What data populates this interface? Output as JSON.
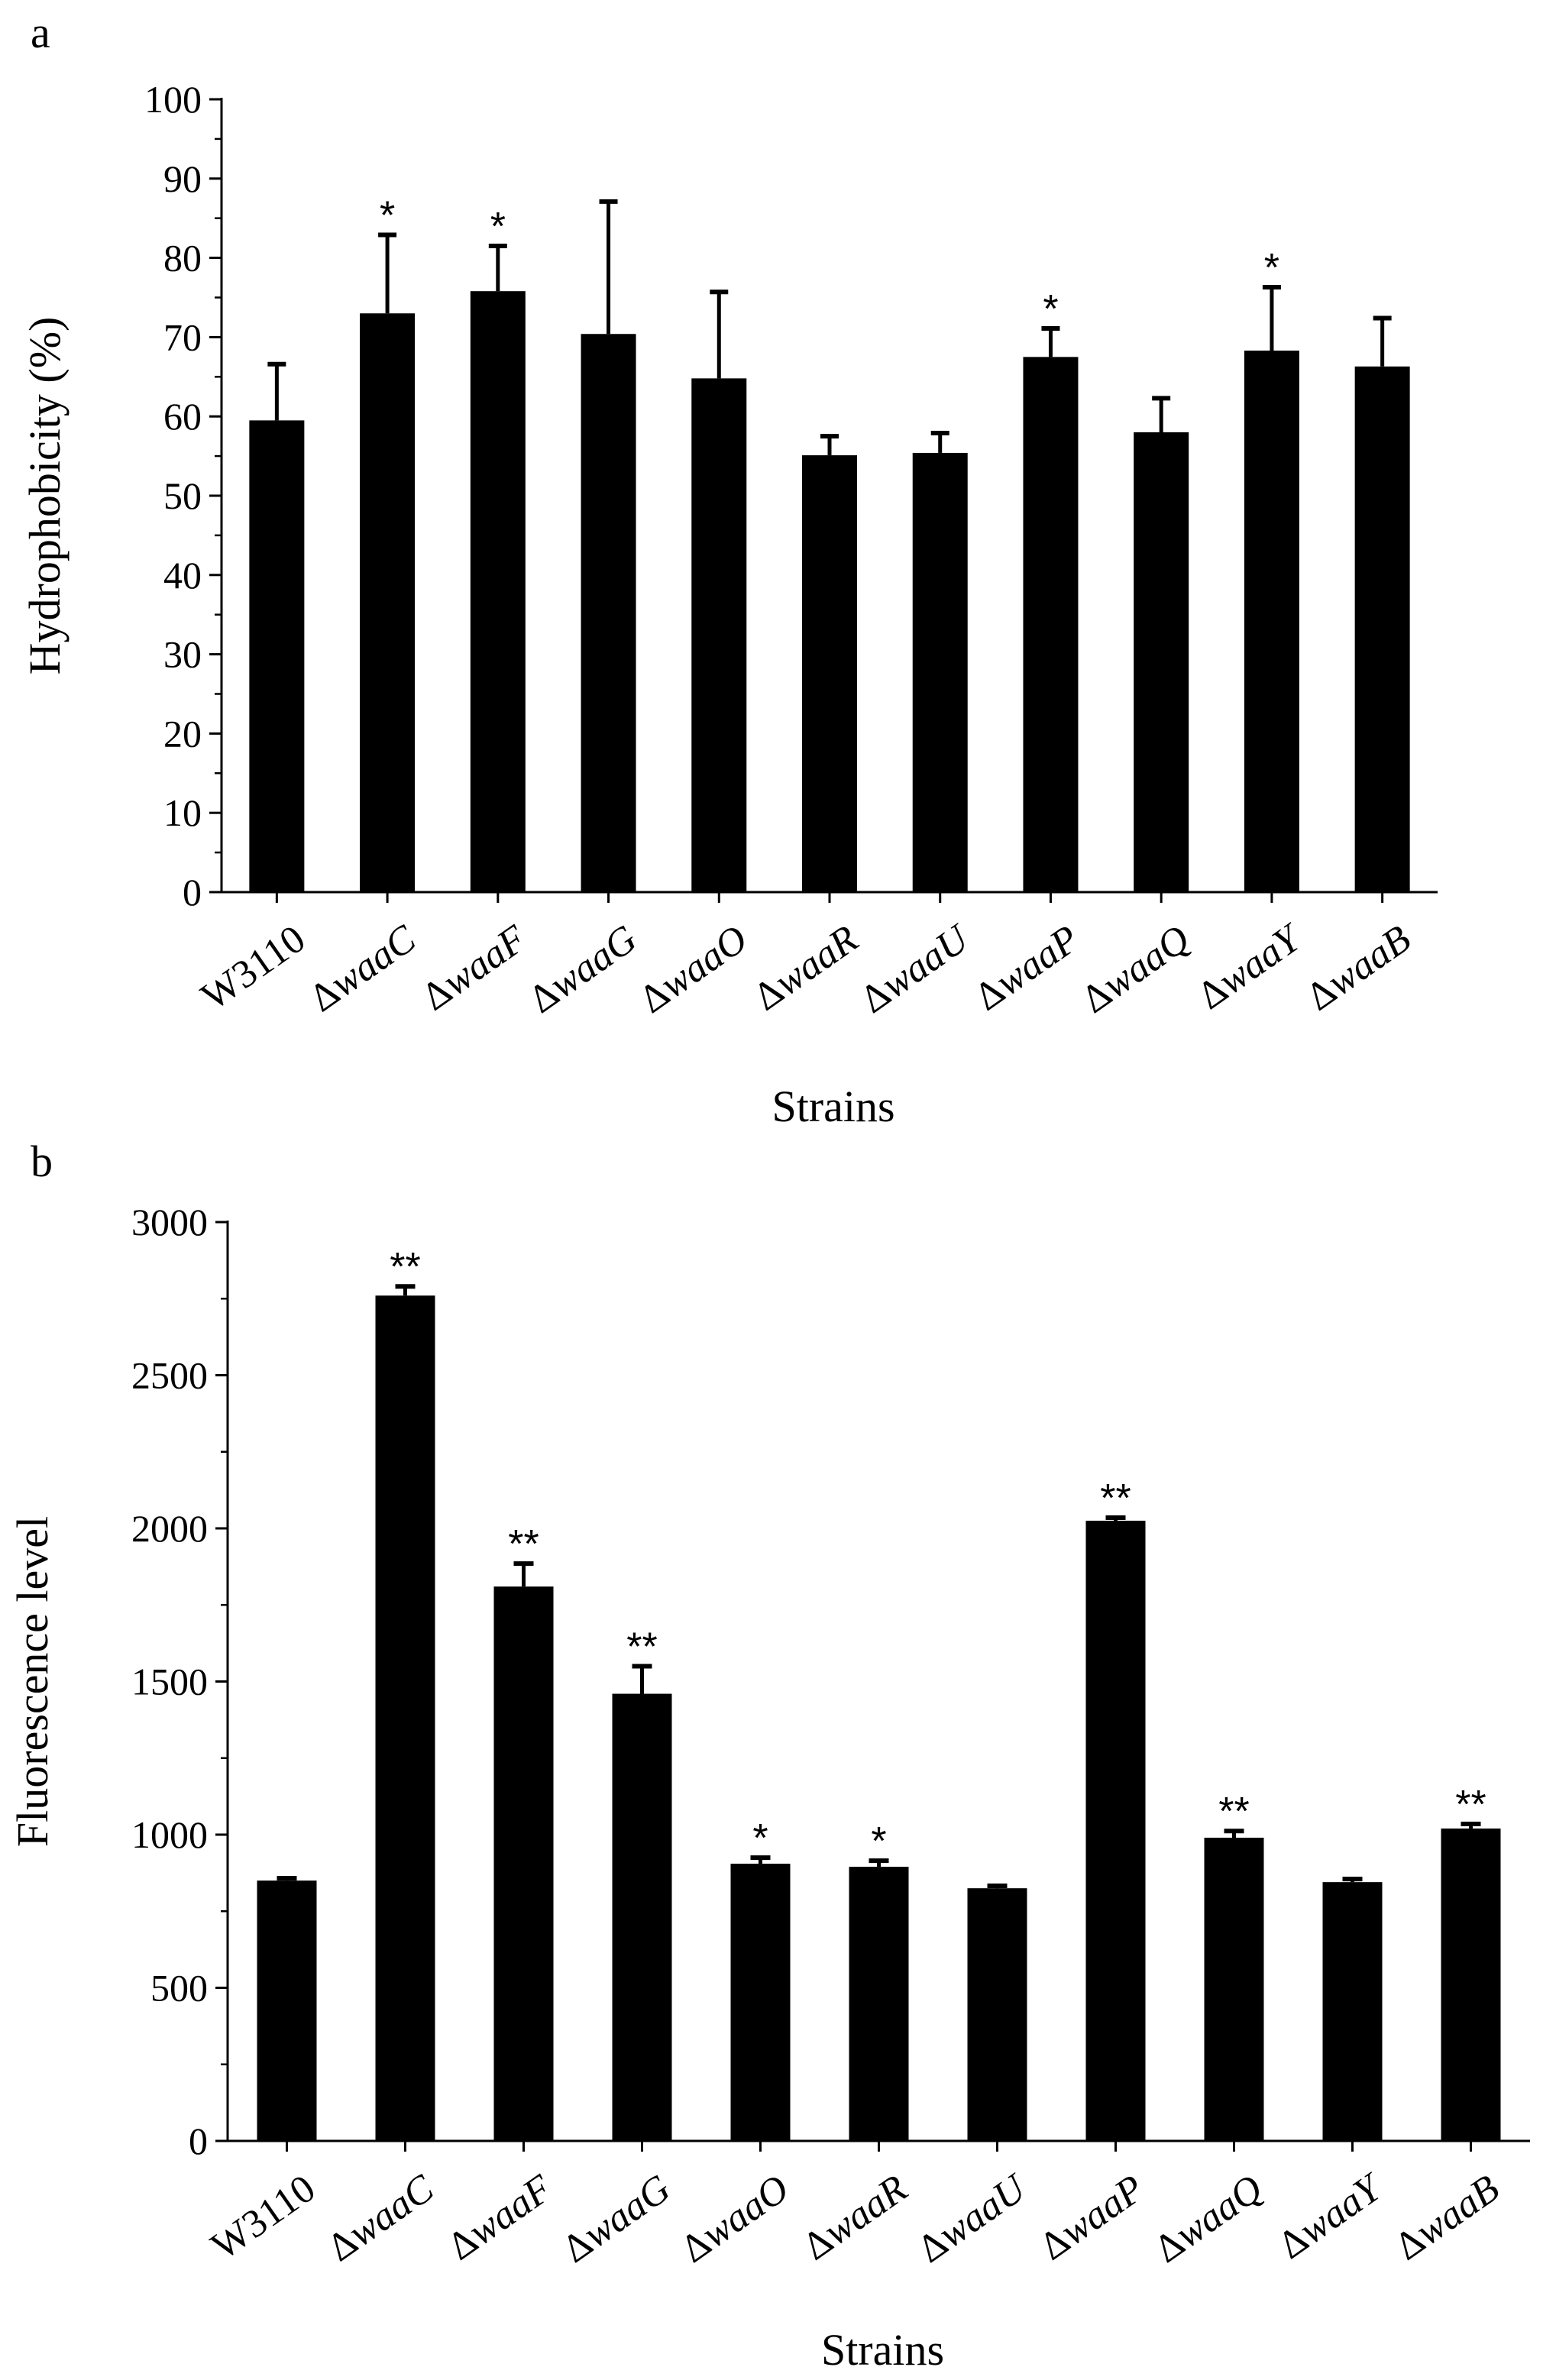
{
  "chart_data": [
    {
      "panel": "a",
      "type": "bar",
      "title": "",
      "xlabel": "Strains",
      "ylabel": "Hydrophobicity (%)",
      "ylim": [
        0,
        100
      ],
      "yticks": [
        0,
        10,
        20,
        30,
        40,
        50,
        60,
        70,
        80,
        90,
        100
      ],
      "ytick_labels": [
        "0",
        "10",
        "20",
        "30",
        "40",
        "50",
        "60",
        "70",
        "80",
        "90",
        "100"
      ],
      "grid": false,
      "categories": [
        {
          "prefix": "",
          "name": "W3110"
        },
        {
          "prefix": "Δ",
          "name": "waaC"
        },
        {
          "prefix": "Δ",
          "name": "waaF"
        },
        {
          "prefix": "Δ",
          "name": "waaG"
        },
        {
          "prefix": "Δ",
          "name": "waaO"
        },
        {
          "prefix": "Δ",
          "name": "waaR"
        },
        {
          "prefix": "Δ",
          "name": "waaU"
        },
        {
          "prefix": "Δ",
          "name": "waaP"
        },
        {
          "prefix": "Δ",
          "name": "waaQ"
        },
        {
          "prefix": "Δ",
          "name": "waaY"
        },
        {
          "prefix": "Δ",
          "name": "waaB"
        }
      ],
      "values": [
        59.5,
        73.0,
        75.8,
        70.4,
        64.8,
        55.1,
        55.4,
        67.5,
        58.0,
        68.3,
        66.3
      ],
      "errors": [
        7.1,
        9.9,
        5.7,
        16.7,
        10.9,
        2.4,
        2.5,
        3.6,
        4.3,
        8.0,
        6.1
      ],
      "significance": [
        "",
        "*",
        "*",
        "",
        "",
        "",
        "",
        "*",
        "",
        "*",
        ""
      ]
    },
    {
      "panel": "b",
      "type": "bar",
      "title": "",
      "xlabel": "Strains",
      "ylabel": "Fluorescence level",
      "ylim": [
        0,
        3000
      ],
      "yticks": [
        0,
        500,
        1000,
        1500,
        2000,
        2500,
        3000
      ],
      "ytick_labels": [
        "0",
        "500",
        "1000",
        "1500",
        "2000",
        "2500",
        "3000"
      ],
      "grid": false,
      "categories": [
        {
          "prefix": "",
          "name": "W3110"
        },
        {
          "prefix": "Δ",
          "name": "waaC"
        },
        {
          "prefix": "Δ",
          "name": "waaF"
        },
        {
          "prefix": "Δ",
          "name": "waaG"
        },
        {
          "prefix": "Δ",
          "name": "waaO"
        },
        {
          "prefix": "Δ",
          "name": "waaR"
        },
        {
          "prefix": "Δ",
          "name": "waaU"
        },
        {
          "prefix": "Δ",
          "name": "waaP"
        },
        {
          "prefix": "Δ",
          "name": "waaQ"
        },
        {
          "prefix": "Δ",
          "name": "waaY"
        },
        {
          "prefix": "Δ",
          "name": "waaB"
        }
      ],
      "values": [
        850,
        2760,
        1810,
        1460,
        905,
        895,
        825,
        2025,
        990,
        845,
        1020
      ],
      "errors": [
        8,
        30,
        75,
        90,
        20,
        20,
        8,
        10,
        22,
        10,
        15
      ],
      "significance": [
        "",
        "**",
        "**",
        "**",
        "*",
        "*",
        "",
        "**",
        "**",
        "",
        "**"
      ]
    }
  ]
}
